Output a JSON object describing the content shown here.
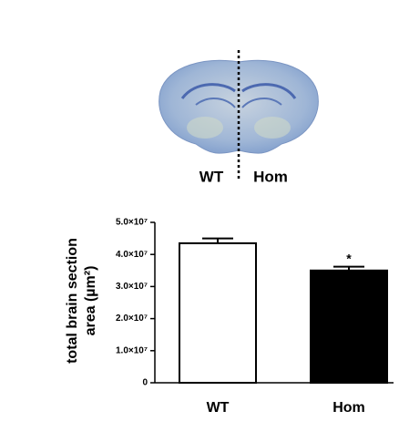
{
  "chart_data": {
    "type": "bar",
    "image_labels": [
      "WT",
      "Hom"
    ],
    "y_label": [
      "total brain section",
      "area (µm²)"
    ],
    "categories": [
      "WT",
      "Hom"
    ],
    "series": [
      {
        "colors": [
          "#ffffff",
          "#000000"
        ],
        "values": [
          43500000,
          35000000
        ],
        "errors": [
          1500000,
          1200000
        ]
      }
    ],
    "annotations": [
      {
        "category": 1,
        "text": "*"
      }
    ],
    "ylim": [
      0,
      50000000
    ],
    "yticks": [
      {
        "value": 0,
        "label": "0"
      },
      {
        "value": 10000000,
        "label": "1.0×10⁷"
      },
      {
        "value": 20000000,
        "label": "2.0×10⁷"
      },
      {
        "value": 30000000,
        "label": "3.0×10⁷"
      },
      {
        "value": 40000000,
        "label": "4.0×10⁷"
      },
      {
        "value": 50000000,
        "label": "5.0×10⁷"
      }
    ]
  }
}
